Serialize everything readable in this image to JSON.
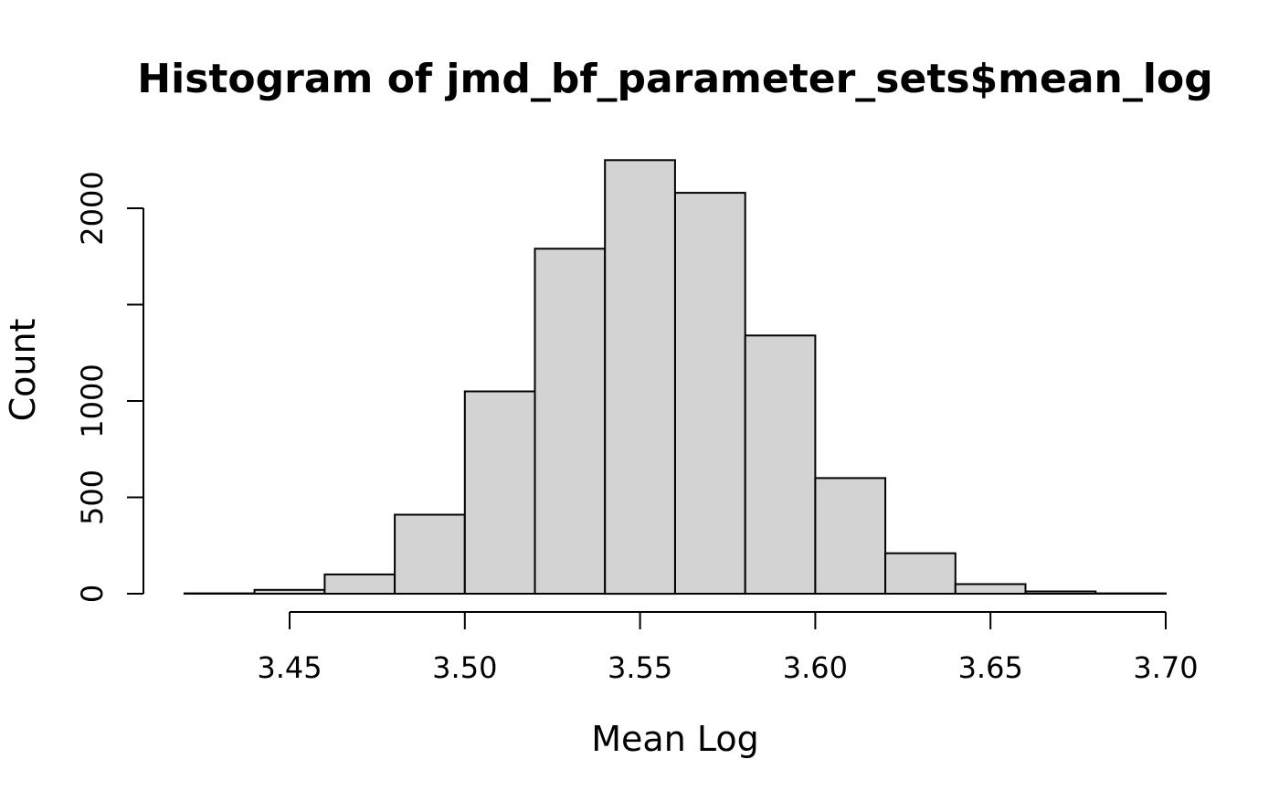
{
  "chart_data": {
    "type": "bar",
    "subtype": "histogram",
    "title": "Histogram of jmd_bf_parameter_sets$mean_log",
    "xlabel": "Mean Log",
    "ylabel": "Count",
    "bin_width": 0.02,
    "breaks": [
      3.42,
      3.44,
      3.46,
      3.48,
      3.5,
      3.52,
      3.54,
      3.56,
      3.58,
      3.6,
      3.62,
      3.64,
      3.66,
      3.68,
      3.7
    ],
    "counts": [
      2,
      20,
      100,
      410,
      1050,
      1790,
      2250,
      2080,
      1340,
      600,
      210,
      50,
      12,
      2
    ],
    "x_ticks": {
      "values": [
        3.45,
        3.5,
        3.55,
        3.6,
        3.65,
        3.7
      ],
      "labels": [
        "3.45",
        "3.50",
        "3.55",
        "3.60",
        "3.65",
        "3.70"
      ]
    },
    "y_ticks": {
      "values": [
        0,
        500,
        1000,
        1500,
        2000
      ],
      "labels": [
        "0",
        "500",
        "1000",
        "",
        "2000"
      ]
    },
    "xlim": [
      3.42,
      3.7
    ],
    "ylim": [
      0,
      2250
    ],
    "grid": false,
    "legend_position": "none",
    "colors": {
      "bar_fill": "#d3d3d3",
      "bar_border": "#000000",
      "axis": "#000000",
      "text": "#000000",
      "background": "#ffffff"
    }
  }
}
